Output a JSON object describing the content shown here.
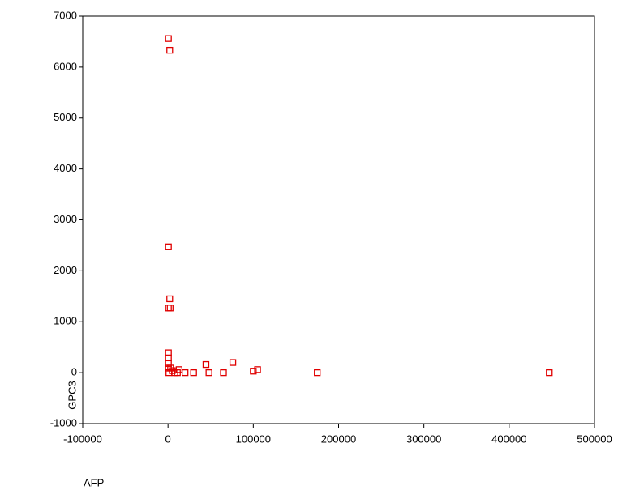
{
  "chart_data": {
    "type": "scatter",
    "x_label": "AFP",
    "y_label": "GPC3",
    "color": "#e00000",
    "x": [
      500,
      2000,
      500,
      2000,
      500,
      2500,
      500,
      500,
      500,
      500,
      1000,
      3000,
      5000,
      8000,
      11000,
      13000,
      20000,
      30000,
      44500,
      48000,
      65000,
      76000,
      100000,
      105000,
      175000,
      447000
    ],
    "y": [
      6560,
      6330,
      2470,
      1450,
      1270,
      1270,
      390,
      290,
      180,
      90,
      0,
      90,
      40,
      0,
      0,
      60,
      0,
      0,
      160,
      0,
      0,
      200,
      30,
      60,
      0,
      0
    ],
    "xlim": [
      -100000,
      500000
    ],
    "xticks": [
      -100000,
      0,
      100000,
      200000,
      300000,
      400000,
      500000
    ],
    "ylim": [
      -1000,
      7000
    ],
    "yticks": [
      -1000,
      0,
      1000,
      2000,
      3000,
      4000,
      5000,
      6000,
      7000
    ]
  }
}
